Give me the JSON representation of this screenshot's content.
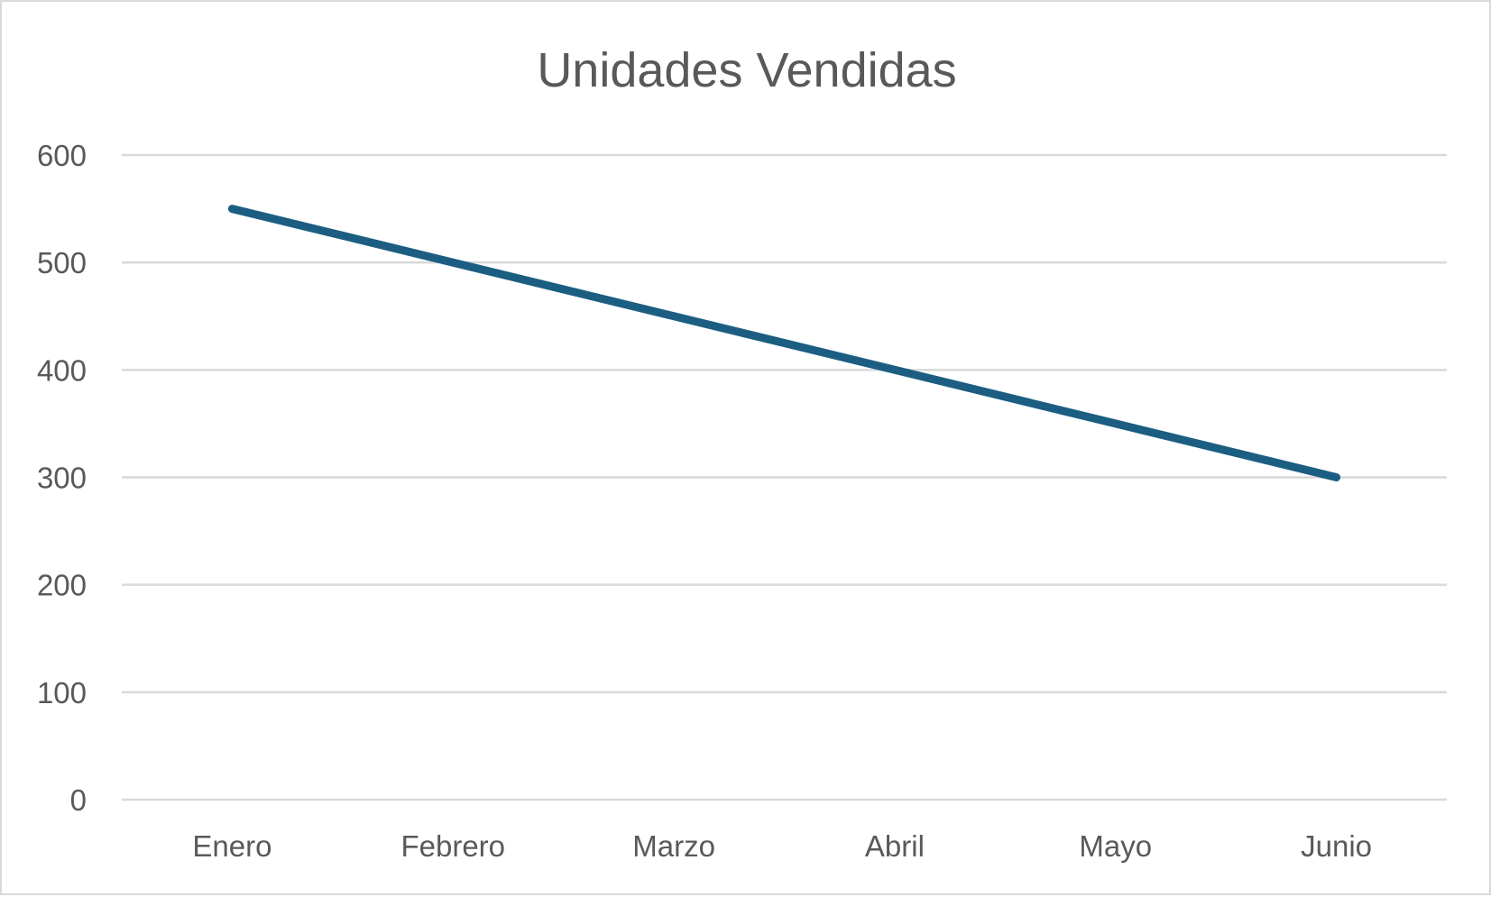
{
  "chart_data": {
    "type": "line",
    "title": "Unidades Vendidas",
    "xlabel": "",
    "ylabel": "",
    "categories": [
      "Enero",
      "Febrero",
      "Marzo",
      "Abril",
      "Mayo",
      "Junio"
    ],
    "series": [
      {
        "values": [
          550,
          500,
          450,
          400,
          350,
          300
        ],
        "color": "#1b5e82"
      }
    ],
    "ylim": [
      0,
      600
    ],
    "yticks": [
      "0",
      "100",
      "200",
      "300",
      "400",
      "500",
      "600"
    ],
    "grid": true,
    "legend": "none"
  }
}
